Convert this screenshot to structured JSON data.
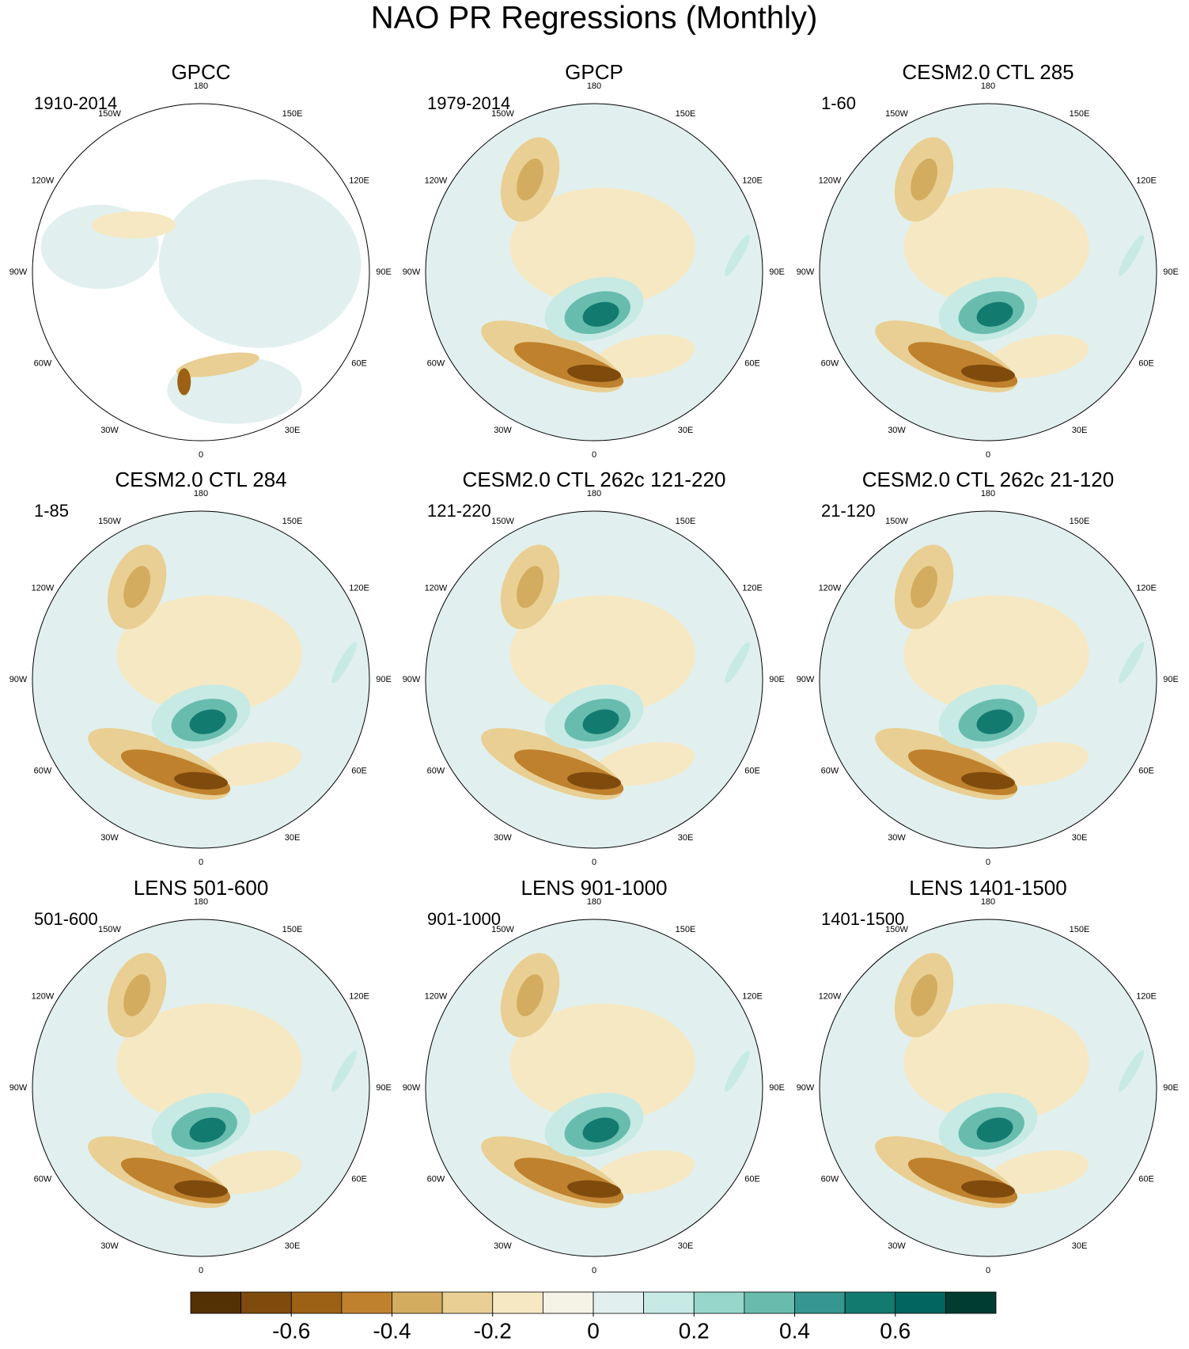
{
  "title": "NAO PR Regressions (Monthly)",
  "panels": [
    {
      "title": "GPCC",
      "period": "1910-2014"
    },
    {
      "title": "GPCP",
      "period": "1979-2014"
    },
    {
      "title": "CESM2.0 CTL 285",
      "period": "1-60"
    },
    {
      "title": "CESM2.0 CTL 284",
      "period": "1-85"
    },
    {
      "title": "CESM2.0 CTL 262c 121-220",
      "period": "121-220"
    },
    {
      "title": "CESM2.0 CTL 262c 21-120",
      "period": "21-120"
    },
    {
      "title": "LENS 501-600",
      "period": "501-600"
    },
    {
      "title": "LENS 901-1000",
      "period": "901-1000"
    },
    {
      "title": "LENS 1401-1500",
      "period": "1401-1500"
    }
  ],
  "lon_labels": [
    "0",
    "30E",
    "60E",
    "90E",
    "120E",
    "150E",
    "180",
    "150W",
    "120W",
    "90W",
    "60W",
    "30W"
  ],
  "colorbar": {
    "colors": [
      "#543005",
      "#7f4b0d",
      "#9c6114",
      "#bf812d",
      "#d4ac60",
      "#e9cf93",
      "#f6e8c3",
      "#f5f2e6",
      "#e1f0ee",
      "#c7eae5",
      "#97d6cb",
      "#68bcae",
      "#35978f",
      "#137a70",
      "#01665e",
      "#003c30"
    ],
    "lim": [
      -0.8,
      0.8
    ],
    "ticks": [
      -0.6,
      -0.4,
      -0.2,
      0,
      0.2,
      0.4,
      0.6
    ]
  }
}
